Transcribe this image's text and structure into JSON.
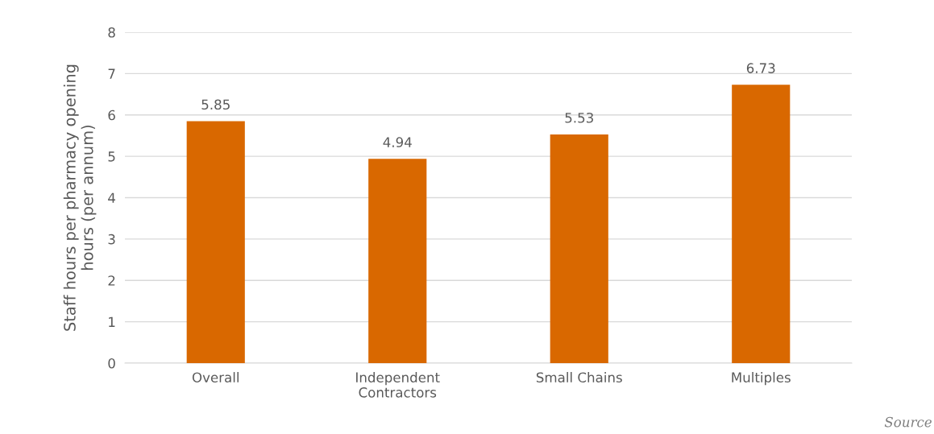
{
  "chart_data": {
    "type": "bar",
    "ylabel": "Staff hours per pharmacy opening\nhours (per annum)",
    "categories": [
      "Overall",
      "Independent\nContractors",
      "Small Chains",
      "Multiples"
    ],
    "values": [
      5.85,
      4.94,
      5.53,
      6.73
    ],
    "color": "#d96800",
    "ylim": [
      0,
      8
    ],
    "yticks": [
      0,
      1,
      2,
      3,
      4,
      5,
      6,
      7,
      8
    ],
    "grid": "y",
    "data_labels": true,
    "annotations": [
      "Source"
    ]
  }
}
